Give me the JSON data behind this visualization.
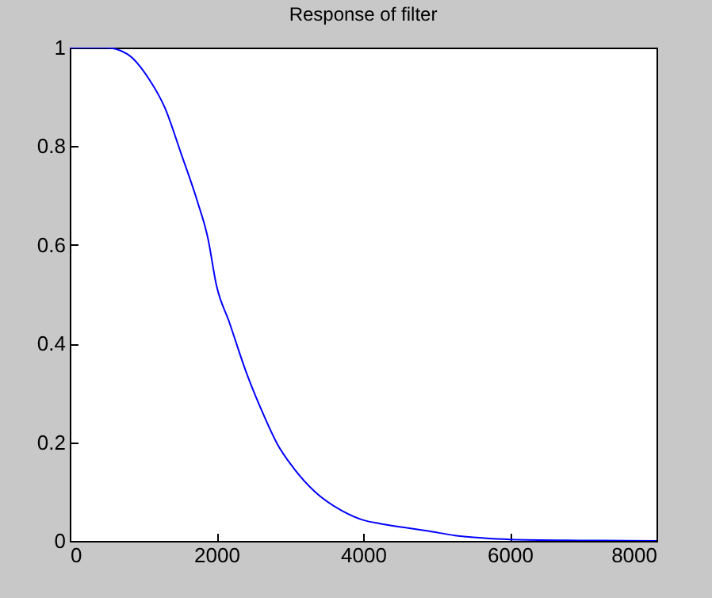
{
  "chart_data": {
    "type": "line",
    "title": "Response of filter",
    "x": [
      0,
      491,
      784,
      1077,
      1297,
      1516,
      1736,
      1883,
      2000,
      2176,
      2396,
      2615,
      2835,
      3055,
      3348,
      3714,
      4007,
      4231,
      4520,
      4886,
      5253,
      5619,
      6000,
      7000,
      8000
    ],
    "series": [
      {
        "color": "#0000ff",
        "values": [
          1,
          1,
          0.987,
          0.937,
          0.878,
          0.786,
          0.69,
          0.614,
          0.518,
          0.443,
          0.346,
          0.265,
          0.195,
          0.147,
          0.099,
          0.061,
          0.042,
          0.035,
          0.028,
          0.02,
          0.011,
          0.006,
          0.003,
          0.001,
          0
        ]
      }
    ],
    "xlim": [
      0,
      8000
    ],
    "xticks": [
      0,
      2000,
      4000,
      6000,
      8000
    ],
    "ylim": [
      0,
      1
    ],
    "yticks": [
      0,
      0.2,
      0.4,
      0.6,
      0.8,
      1
    ],
    "grid": false,
    "marker": "none",
    "line_style": "solid"
  }
}
